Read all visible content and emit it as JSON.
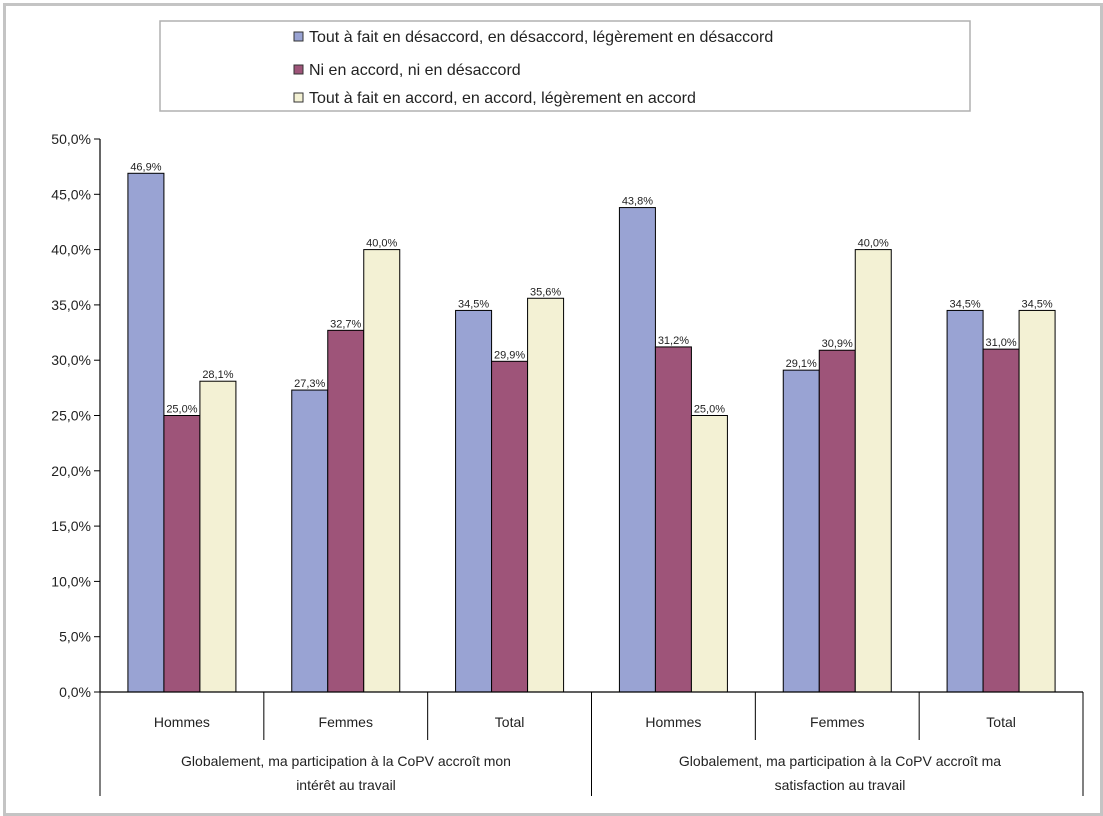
{
  "chart_data": {
    "type": "bar",
    "legend_position": "top",
    "grid": false,
    "ylim": [
      0,
      50
    ],
    "yticks": [
      "0,0%",
      "5,0%",
      "10,0%",
      "15,0%",
      "20,0%",
      "25,0%",
      "30,0%",
      "35,0%",
      "40,0%",
      "45,0%",
      "50,0%"
    ],
    "groups": [
      "Globalement, ma participation à la CoPV accroît mon intérêt au travail",
      "Globalement, ma participation à la CoPV accroît ma satisfaction au travail"
    ],
    "categories": [
      "Hommes",
      "Femmes",
      "Total",
      "Hommes",
      "Femmes",
      "Total"
    ],
    "series": [
      {
        "name": "Tout à fait en désaccord, en désaccord, légèrement en désaccord",
        "color": "#99a3d3",
        "values": [
          46.9,
          27.3,
          34.5,
          43.8,
          29.1,
          34.5
        ],
        "labels": [
          "46,9%",
          "27,3%",
          "34,5%",
          "43,8%",
          "29,1%",
          "34,5%"
        ]
      },
      {
        "name": "Ni en accord, ni en désaccord",
        "color": "#9e5479",
        "values": [
          25.0,
          32.7,
          29.9,
          31.2,
          30.9,
          31.0
        ],
        "labels": [
          "25,0%",
          "32,7%",
          "29,9%",
          "31,2%",
          "30,9%",
          "31,0%"
        ]
      },
      {
        "name": "Tout à fait en accord, en accord, légèrement en accord",
        "color": "#f3f1d4",
        "values": [
          28.1,
          40.0,
          35.6,
          25.0,
          40.0,
          34.5
        ],
        "labels": [
          "28,1%",
          "40,0%",
          "35,6%",
          "25,0%",
          "40,0%",
          "34,5%"
        ]
      }
    ]
  }
}
